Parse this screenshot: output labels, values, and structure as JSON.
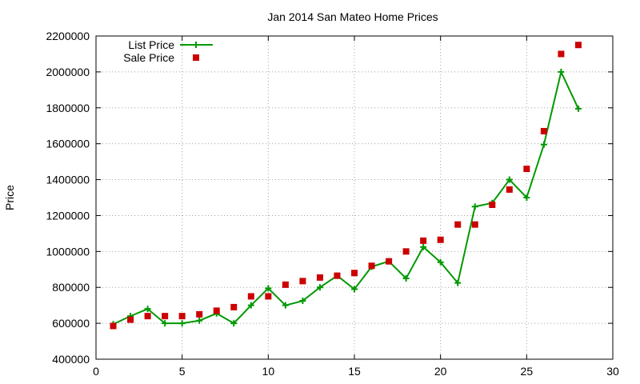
{
  "chart_data": {
    "type": "line",
    "title": "Jan 2014 San Mateo Home Prices",
    "xlabel": "",
    "ylabel": "Price",
    "xlim": [
      0,
      30
    ],
    "ylim": [
      400000,
      2200000
    ],
    "xticks": [
      0,
      5,
      10,
      15,
      20,
      25,
      30
    ],
    "yticks": [
      400000,
      600000,
      800000,
      1000000,
      1200000,
      1400000,
      1600000,
      1800000,
      2000000,
      2200000
    ],
    "grid": true,
    "legend": "top-left",
    "x": [
      1,
      2,
      3,
      4,
      5,
      6,
      7,
      8,
      9,
      10,
      11,
      12,
      13,
      14,
      15,
      16,
      17,
      18,
      19,
      20,
      21,
      22,
      23,
      24,
      25,
      26,
      27,
      28
    ],
    "series": [
      {
        "name": "List Price",
        "style": "line+cross",
        "color": "#009900",
        "values": [
          595000,
          640000,
          680000,
          600000,
          600000,
          615000,
          655000,
          600000,
          700000,
          795000,
          700000,
          725000,
          800000,
          865000,
          790000,
          915000,
          945000,
          850000,
          1025000,
          940000,
          825000,
          1250000,
          1270000,
          1400000,
          1300000,
          1595000,
          2000000,
          1795000
        ]
      },
      {
        "name": "Sale Price",
        "style": "square",
        "color": "#cc0000",
        "values": [
          585000,
          620000,
          640000,
          640000,
          640000,
          650000,
          670000,
          690000,
          750000,
          750000,
          815000,
          835000,
          855000,
          865000,
          880000,
          920000,
          945000,
          1000000,
          1060000,
          1065000,
          1150000,
          1150000,
          1260000,
          1345000,
          1460000,
          1670000,
          2100000,
          2150000
        ]
      }
    ]
  }
}
